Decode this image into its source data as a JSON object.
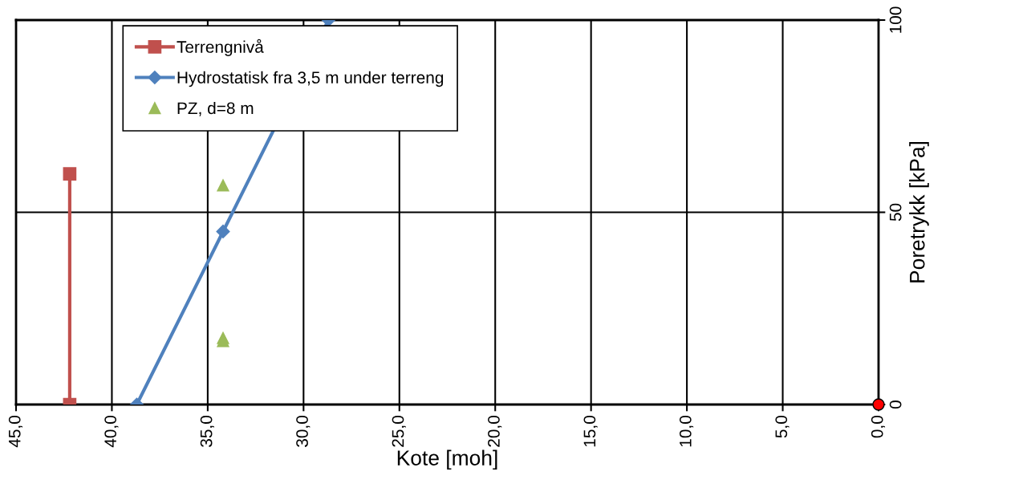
{
  "chart_data": {
    "type": "line",
    "xlabel": "Kote [moh]",
    "ylabel": "Poretrykk [kPa]",
    "xlim": [
      45,
      0
    ],
    "xticks": [
      {
        "value": 45,
        "label": "45,0"
      },
      {
        "value": 40,
        "label": "40,0"
      },
      {
        "value": 35,
        "label": "35,0"
      },
      {
        "value": 30,
        "label": "30,0"
      },
      {
        "value": 25,
        "label": "25,0"
      },
      {
        "value": 20,
        "label": "20,0"
      },
      {
        "value": 15,
        "label": "15,0"
      },
      {
        "value": 10,
        "label": "10,0"
      },
      {
        "value": 5,
        "label": "5,0"
      },
      {
        "value": 0,
        "label": "0,0"
      }
    ],
    "ylim": [
      0,
      100
    ],
    "yticks": [
      0,
      50,
      100
    ],
    "grid": true,
    "legend": "top left",
    "series": [
      {
        "name": "Terrengnivå",
        "color": "#c0504d",
        "marker": "square",
        "x": [
          42.2,
          42.2
        ],
        "values": [
          0,
          60
        ]
      },
      {
        "name": "Hydrostatisk fra 3,5 m under terreng",
        "color": "#4f81bd",
        "marker": "diamond",
        "x": [
          38.7,
          34.2,
          28.7
        ],
        "values": [
          0,
          45,
          100
        ]
      },
      {
        "name": "PZ, d=8 m",
        "type": "scatter",
        "color": "#9bbb59",
        "marker": "triangle",
        "x": [
          34.2,
          34.2,
          34.2
        ],
        "values": [
          57,
          17.3,
          16.5
        ]
      },
      {
        "type": "scatter",
        "color": "#ff0000",
        "marker": "circle",
        "x": [
          0
        ],
        "values": [
          0
        ]
      }
    ]
  }
}
